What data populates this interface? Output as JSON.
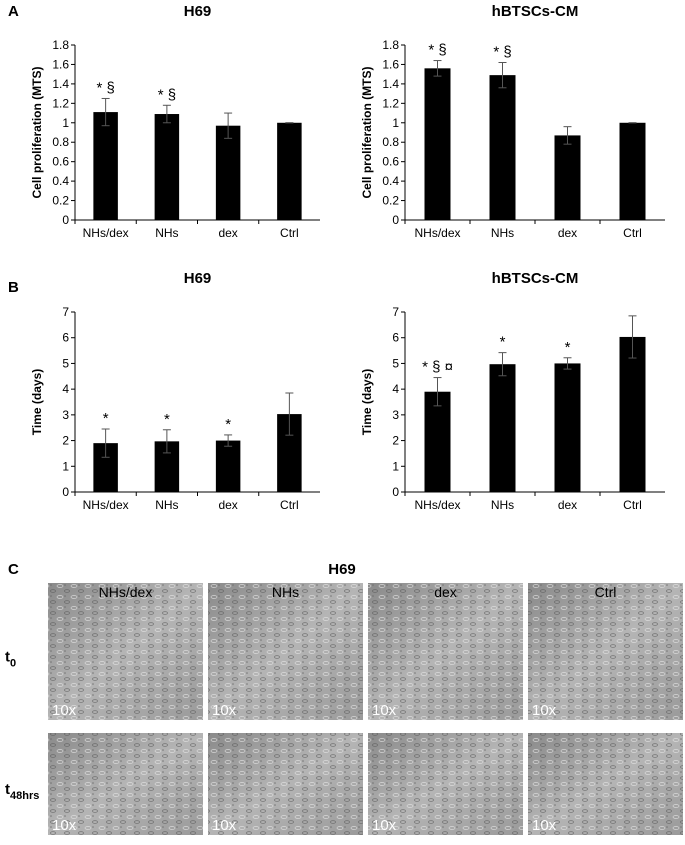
{
  "panels": [
    "A",
    "B",
    "C"
  ],
  "chart_data": [
    {
      "type": "bar",
      "title": "H69",
      "y_label": "Cell proliferation (MTS)",
      "color": "#000000",
      "categories": [
        "NHs/dex",
        "NHs",
        "dex",
        "Ctrl"
      ],
      "values": [
        1.11,
        1.09,
        0.97,
        1.0
      ],
      "errors": [
        0.14,
        0.09,
        0.13,
        0
      ],
      "annotations": [
        "* §",
        "* §",
        null,
        null
      ],
      "ylim": [
        0,
        1.8
      ],
      "yticks": [
        0,
        0.2,
        0.4,
        0.6,
        0.8,
        1,
        1.2,
        1.4,
        1.6,
        1.8
      ],
      "grid": false
    },
    {
      "type": "bar",
      "title": "hBTSCs-CM",
      "y_label": "Cell proliferation (MTS)",
      "color": "#000000",
      "categories": [
        "NHs/dex",
        "NHs",
        "dex",
        "Ctrl"
      ],
      "values": [
        1.56,
        1.49,
        0.87,
        1.0
      ],
      "errors": [
        0.08,
        0.13,
        0.09,
        0
      ],
      "annotations": [
        "* §",
        "* §",
        null,
        null
      ],
      "ylim": [
        0,
        1.8
      ],
      "yticks": [
        0,
        0.2,
        0.4,
        0.6,
        0.8,
        1,
        1.2,
        1.4,
        1.6,
        1.8
      ],
      "grid": false
    },
    {
      "type": "bar",
      "title": "H69",
      "y_label": "Time (days)",
      "color": "#000000",
      "categories": [
        "NHs/dex",
        "NHs",
        "dex",
        "Ctrl"
      ],
      "values": [
        1.9,
        1.97,
        2.0,
        3.03
      ],
      "errors": [
        0.55,
        0.45,
        0.22,
        0.82
      ],
      "annotations": [
        "*",
        "*",
        "*",
        null
      ],
      "ylim": [
        0,
        7
      ],
      "yticks": [
        0,
        1,
        2,
        3,
        4,
        5,
        6,
        7
      ],
      "grid": false
    },
    {
      "type": "bar",
      "title": "hBTSCs-CM",
      "y_label": "Time (days)",
      "color": "#000000",
      "categories": [
        "NHs/dex",
        "NHs",
        "dex",
        "Ctrl"
      ],
      "values": [
        3.9,
        4.97,
        5.0,
        6.03
      ],
      "errors": [
        0.55,
        0.45,
        0.22,
        0.82
      ],
      "annotations": [
        "* § ¤",
        "*",
        "*",
        null
      ],
      "ylim": [
        0,
        7
      ],
      "yticks": [
        0,
        1,
        2,
        3,
        4,
        5,
        6,
        7
      ],
      "grid": false
    }
  ],
  "panel_c": {
    "title": "H69",
    "columns": [
      "NHs/dex",
      "NHs",
      "dex",
      "Ctrl"
    ],
    "rows": [
      {
        "main": "t",
        "sub": "0"
      },
      {
        "main": "t",
        "sub": "48hrs"
      }
    ],
    "magnification": "10x"
  }
}
